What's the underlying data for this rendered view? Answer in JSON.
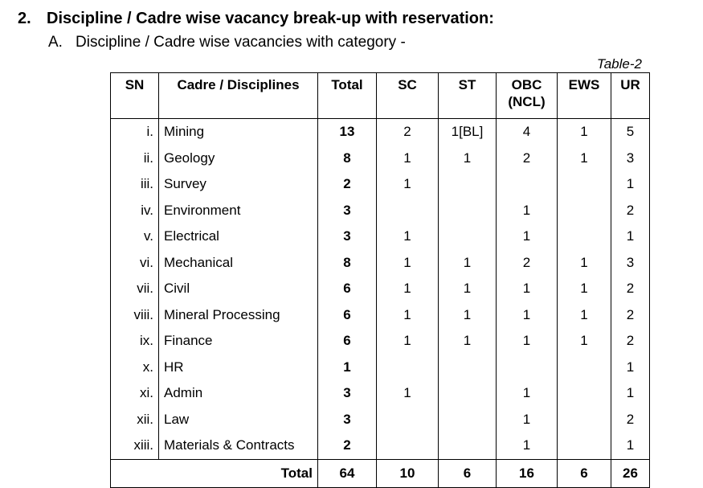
{
  "header": {
    "number": "2.",
    "title": "Discipline / Cadre wise vacancy break-up with reservation:",
    "sub_number": "A.",
    "subtitle": "Discipline / Cadre wise vacancies with category -"
  },
  "table": {
    "caption": "Table-2",
    "columns": [
      "SN",
      "Cadre / Disciplines",
      "Total",
      "SC",
      "ST",
      "OBC (NCL)",
      "EWS",
      "UR"
    ],
    "rows": [
      [
        "i.",
        "Mining",
        13,
        2,
        "1[BL]",
        4,
        1,
        5
      ],
      [
        "ii.",
        "Geology",
        8,
        1,
        1,
        2,
        1,
        3
      ],
      [
        "iii.",
        "Survey",
        2,
        1,
        null,
        null,
        null,
        1
      ],
      [
        "iv.",
        "Environment",
        3,
        null,
        null,
        1,
        null,
        2
      ],
      [
        "v.",
        "Electrical",
        3,
        1,
        null,
        1,
        null,
        1
      ],
      [
        "vi.",
        "Mechanical",
        8,
        1,
        1,
        2,
        1,
        3
      ],
      [
        "vii.",
        "Civil",
        6,
        1,
        1,
        1,
        1,
        2
      ],
      [
        "viii.",
        "Mineral Processing",
        6,
        1,
        1,
        1,
        1,
        2
      ],
      [
        "ix.",
        "Finance",
        6,
        1,
        1,
        1,
        1,
        2
      ],
      [
        "x.",
        "HR",
        1,
        null,
        null,
        null,
        null,
        1
      ],
      [
        "xi.",
        "Admin",
        3,
        1,
        null,
        1,
        null,
        1
      ],
      [
        "xii.",
        "Law",
        3,
        null,
        null,
        1,
        null,
        2
      ],
      [
        "xiii.",
        "Materials & Contracts",
        2,
        null,
        null,
        1,
        null,
        1
      ]
    ],
    "total_label": "Total",
    "totals": [
      64,
      10,
      6,
      16,
      6,
      26
    ]
  }
}
